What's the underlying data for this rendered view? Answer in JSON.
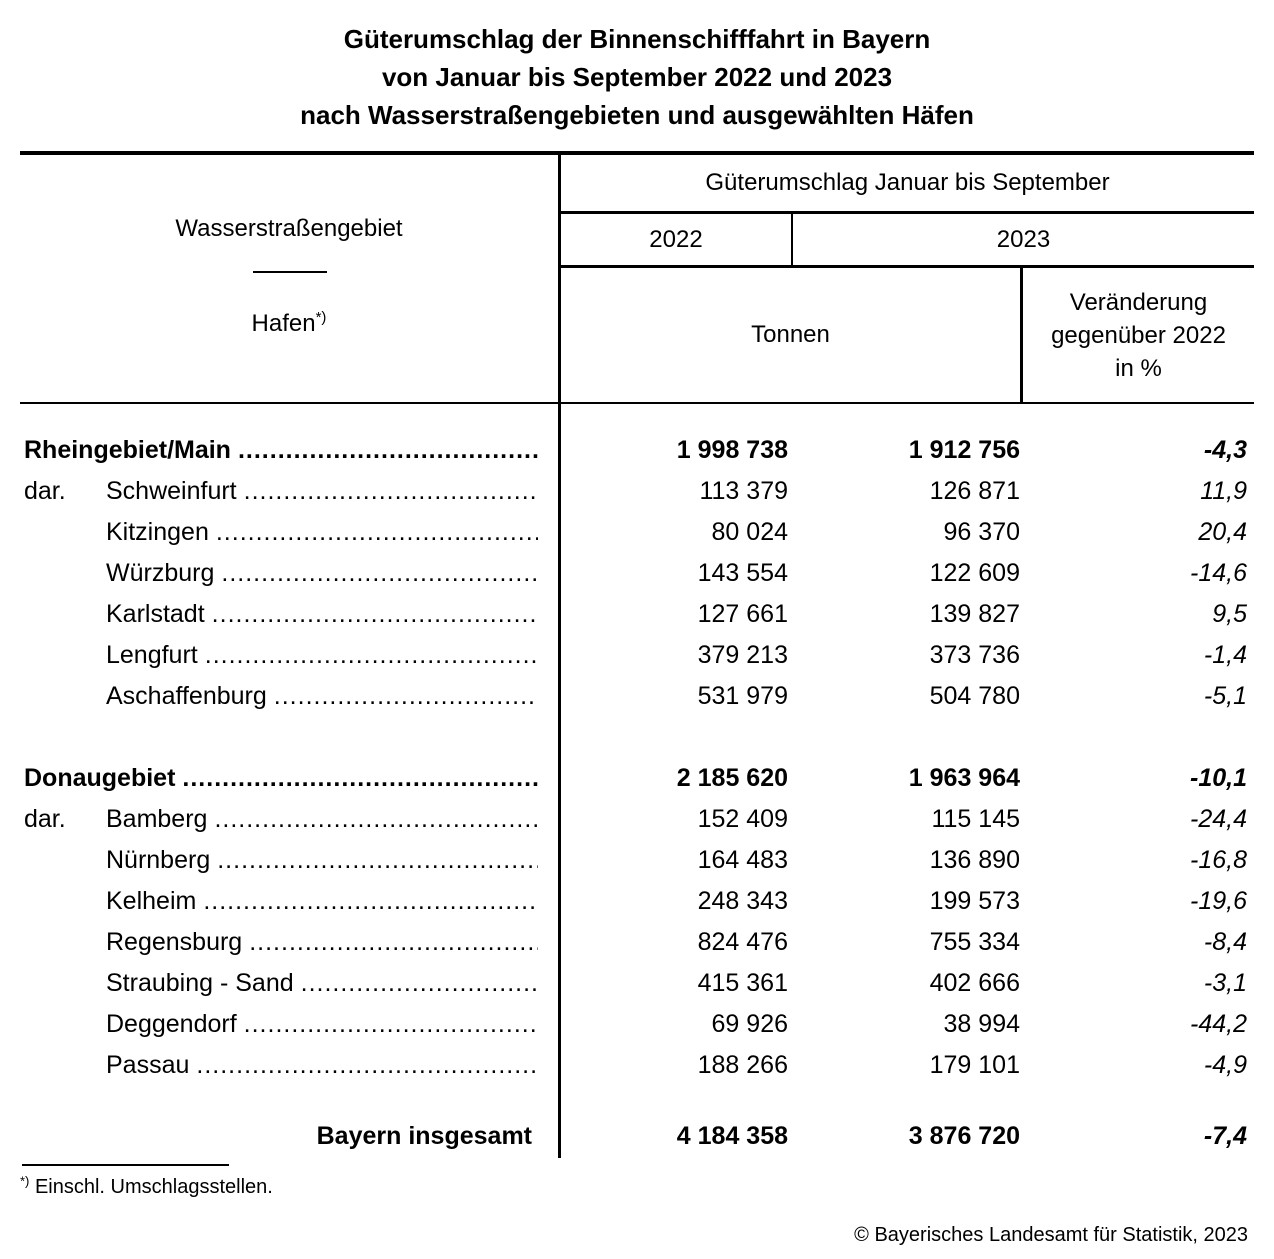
{
  "title": {
    "line1": "Güterumschlag der Binnenschifffahrt in Bayern",
    "line2": "von Januar bis September 2022 und 2023",
    "line3": "nach Wasserstraßengebieten und ausgewählten Häfen"
  },
  "table": {
    "header": {
      "col_left_top": "Wasserstraßengebiet",
      "col_left_bottom": "Hafen",
      "footnote_mark": "*)",
      "group_title": "Güterumschlag Januar bis September",
      "year_2022": "2022",
      "year_2023": "2023",
      "unit": "Tonnen",
      "change_line1": "Veränderung",
      "change_line2": "gegenüber 2022",
      "change_line3": "in %"
    },
    "rows": [
      {
        "type": "section",
        "prefix": "",
        "name": "Rheingebiet/Main",
        "v2022": "1 998 738",
        "v2023": "1 912 756",
        "pct": "-4,3"
      },
      {
        "type": "port",
        "prefix": "dar.",
        "name": "Schweinfurt",
        "v2022": "113 379",
        "v2023": "126 871",
        "pct": "11,9"
      },
      {
        "type": "port",
        "prefix": "",
        "name": "Kitzingen",
        "v2022": "80 024",
        "v2023": "96 370",
        "pct": "20,4"
      },
      {
        "type": "port",
        "prefix": "",
        "name": "Würzburg",
        "v2022": "143 554",
        "v2023": "122 609",
        "pct": "-14,6"
      },
      {
        "type": "port",
        "prefix": "",
        "name": "Karlstadt",
        "v2022": "127 661",
        "v2023": "139 827",
        "pct": "9,5"
      },
      {
        "type": "port",
        "prefix": "",
        "name": "Lengfurt",
        "v2022": "379 213",
        "v2023": "373 736",
        "pct": "-1,4"
      },
      {
        "type": "port",
        "prefix": "",
        "name": "Aschaffenburg",
        "v2022": "531 979",
        "v2023": "504 780",
        "pct": "-5,1"
      },
      {
        "type": "spacer",
        "size": "large"
      },
      {
        "type": "section",
        "prefix": "",
        "name": "Donaugebiet",
        "v2022": "2 185 620",
        "v2023": "1 963 964",
        "pct": "-10,1"
      },
      {
        "type": "port",
        "prefix": "dar.",
        "name": "Bamberg",
        "v2022": "152 409",
        "v2023": "115 145",
        "pct": "-24,4"
      },
      {
        "type": "port",
        "prefix": "",
        "name": "Nürnberg",
        "v2022": "164 483",
        "v2023": "136 890",
        "pct": "-16,8"
      },
      {
        "type": "port",
        "prefix": "",
        "name": "Kelheim",
        "v2022": "248 343",
        "v2023": "199 573",
        "pct": "-19,6"
      },
      {
        "type": "port",
        "prefix": "",
        "name": "Regensburg",
        "v2022": "824 476",
        "v2023": "755 334",
        "pct": "-8,4"
      },
      {
        "type": "port",
        "prefix": "",
        "name": "Straubing - Sand",
        "v2022": "415 361",
        "v2023": "402 666",
        "pct": "-3,1"
      },
      {
        "type": "port",
        "prefix": "",
        "name": "Deggendorf",
        "v2022": "69 926",
        "v2023": "38 994",
        "pct": "-44,2"
      },
      {
        "type": "port",
        "prefix": "",
        "name": "Passau",
        "v2022": "188 266",
        "v2023": "179 101",
        "pct": "-4,9"
      },
      {
        "type": "spacer",
        "size": "small"
      },
      {
        "type": "total",
        "prefix": "",
        "name": "Bayern insgesamt",
        "v2022": "4 184 358",
        "v2023": "3 876 720",
        "pct": "-7,4"
      }
    ]
  },
  "footnote": {
    "mark": "*)",
    "text": "Einschl. Umschlagsstellen."
  },
  "copyright": "© Bayerisches Landesamt für Statistik, 2023"
}
